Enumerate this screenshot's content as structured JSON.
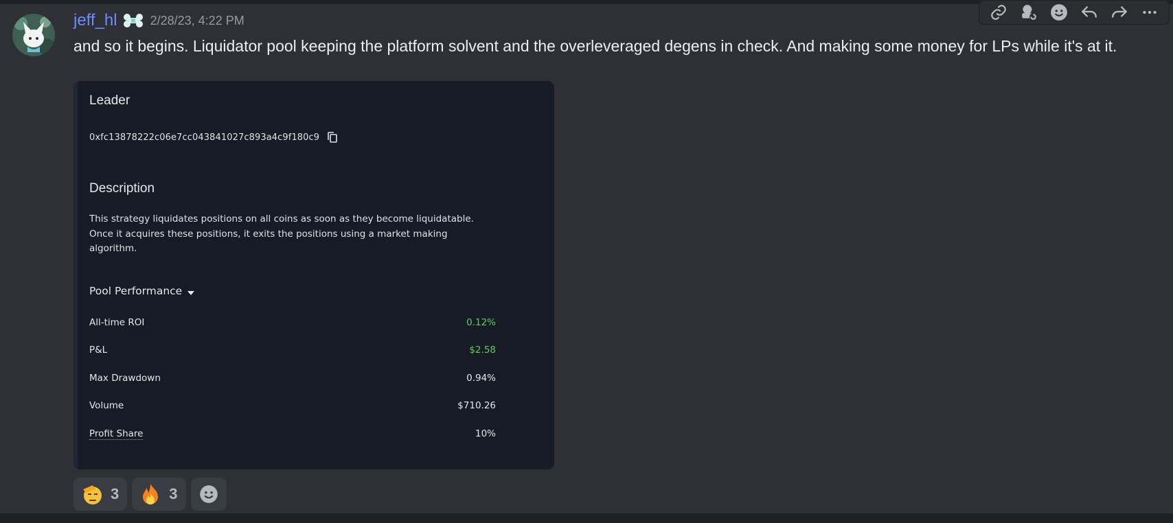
{
  "message": {
    "author": "jeff_hl",
    "timestamp": "2/28/23, 4:22 PM",
    "text": "and so it begins. Liquidator pool keeping the platform solvent and the overleveraged degens in check. And making some money for LPs while it's at it."
  },
  "toolbar": {
    "icons": [
      "link-icon",
      "thread-icon",
      "add-reaction-icon",
      "reply-icon",
      "forward-icon",
      "more-icon"
    ]
  },
  "embed": {
    "leader_title": "Leader",
    "address": "0xfc13878222c06e7cc043841027c893a4c9f180c9",
    "description_title": "Description",
    "description_text": "This strategy liquidates positions on all coins as soon as they become liquidatable. Once it acquires these positions, it exits the positions using a market making algorithm.",
    "performance_title": "Pool Performance",
    "stats": [
      {
        "label": "All-time ROI",
        "value": "0.12%"
      },
      {
        "label": "P&L",
        "value": "$2.58"
      },
      {
        "label": "Max Drawdown",
        "value": "0.94%"
      },
      {
        "label": "Volume",
        "value": "$710.26"
      },
      {
        "label": "Profit Share",
        "value": "10%"
      }
    ]
  },
  "reactions": [
    {
      "emoji": "saluting-face-icon",
      "count": "3"
    },
    {
      "emoji": "fire-icon",
      "count": "3"
    }
  ],
  "colors": {
    "username": "#6c8cff",
    "positive": "#5fcf5f",
    "embed_bg": "#171b26",
    "chat_bg": "#2e3035"
  }
}
